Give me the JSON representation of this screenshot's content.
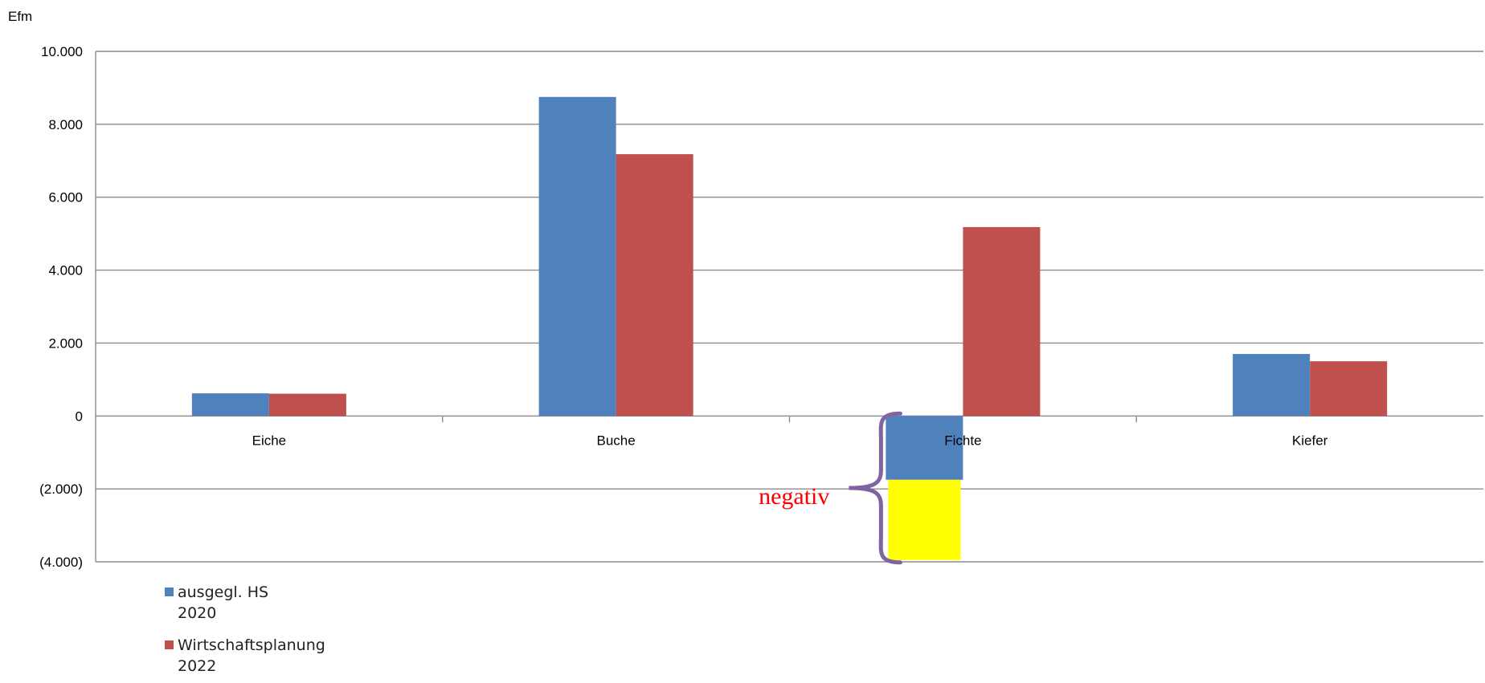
{
  "chart_data": {
    "type": "bar",
    "title": "",
    "ylabel": "Efm",
    "xlabel": "",
    "ylim": [
      -4000,
      10000
    ],
    "yticks": [
      10000,
      8000,
      6000,
      4000,
      2000,
      0,
      -2000,
      -4000
    ],
    "ytick_labels": [
      "10.000",
      "8.000",
      "6.000",
      "4.000",
      "2.000",
      "0",
      "(2.000)",
      "(4.000)"
    ],
    "grid": true,
    "legend_position": "bottom-left",
    "categories": [
      "Eiche",
      "Buche",
      "Fichte",
      "Kiefer"
    ],
    "series": [
      {
        "name_lines": [
          "ausgegl. HS",
          "2020"
        ],
        "color": "#4f81bd",
        "values": [
          620,
          8750,
          -1750,
          1700
        ]
      },
      {
        "name_lines": [
          "Wirtschaftsplanung",
          "2022"
        ],
        "color": "#c0504d",
        "values": [
          610,
          7180,
          5180,
          1500
        ]
      }
    ],
    "highlight": {
      "category": "Fichte",
      "series_index": 0,
      "from": -1750,
      "to": -3950,
      "color": "#ffff00"
    },
    "annotation": {
      "text": "negativ",
      "color": "#ff0000",
      "brace_color": "#8064a2",
      "brace_from": 0,
      "brace_to": -3950
    }
  }
}
